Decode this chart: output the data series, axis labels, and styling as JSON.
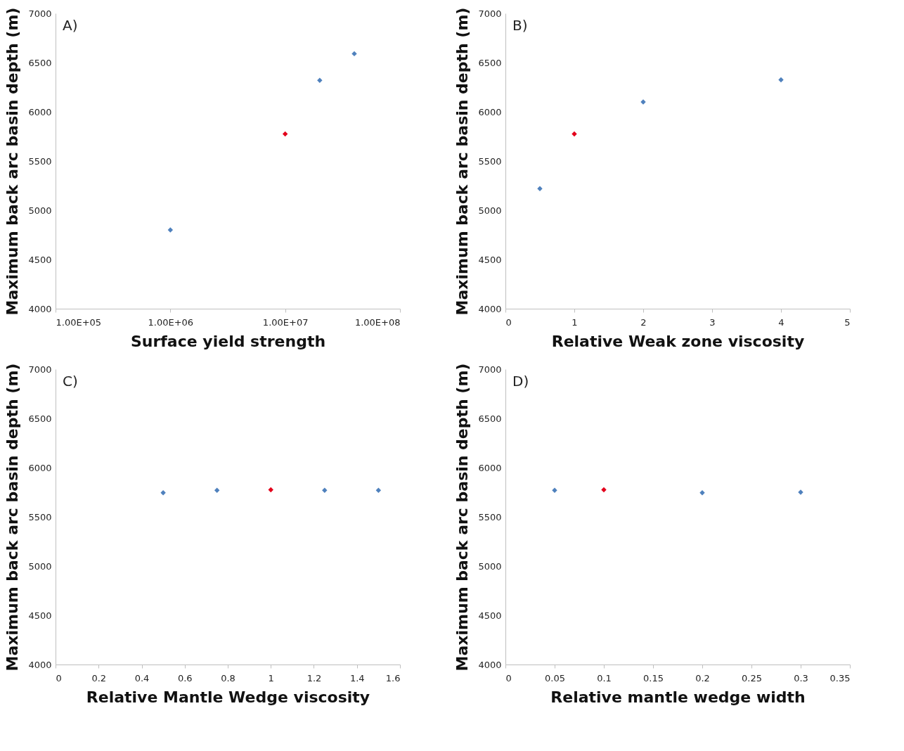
{
  "chart_data": [
    {
      "type": "scatter",
      "annotations": [
        "A)"
      ],
      "xlabel": "Surface yield strength",
      "ylabel": "Maximum back arc basin depth (m)",
      "log": "x",
      "xlim": [
        100000,
        100000000
      ],
      "xticks": [
        {
          "value": 100000,
          "label": "1.00E+05"
        },
        {
          "value": 1000000,
          "label": "1.00E+06"
        },
        {
          "value": 10000000,
          "label": "1.00E+07"
        },
        {
          "value": 100000000,
          "label": "1.00E+08"
        }
      ],
      "ylim": [
        4000,
        7000
      ],
      "yticks": [
        4000,
        4500,
        5000,
        5500,
        6000,
        6500,
        7000
      ],
      "grid": false,
      "legend": false,
      "marker": "diamond",
      "series": [
        {
          "color": "#4f81bd",
          "x": [
            1000000,
            20000000,
            40000000
          ],
          "values": [
            4800,
            6320,
            6590
          ]
        },
        {
          "color": "#e3001b",
          "x": [
            10000000
          ],
          "values": [
            5775
          ]
        }
      ]
    },
    {
      "type": "scatter",
      "annotations": [
        "B)"
      ],
      "xlabel": "Relative Weak zone viscosity",
      "ylabel": "Maximum back arc basin depth (m)",
      "xlim": [
        0,
        5
      ],
      "xticks": [
        0,
        1,
        2,
        3,
        4,
        5
      ],
      "ylim": [
        4000,
        7000
      ],
      "yticks": [
        4000,
        4500,
        5000,
        5500,
        6000,
        6500,
        7000
      ],
      "grid": false,
      "legend": false,
      "marker": "diamond",
      "series": [
        {
          "color": "#4f81bd",
          "x": [
            0.5,
            2,
            4
          ],
          "values": [
            5220,
            6100,
            6325
          ]
        },
        {
          "color": "#e3001b",
          "x": [
            1
          ],
          "values": [
            5775
          ]
        }
      ]
    },
    {
      "type": "scatter",
      "annotations": [
        "C)"
      ],
      "xlabel": "Relative Mantle Wedge viscosity",
      "ylabel": "Maximum back arc basin depth (m)",
      "xlim": [
        0,
        1.6
      ],
      "xticks": [
        0,
        0.2,
        0.4,
        0.6,
        0.8,
        1,
        1.2,
        1.4,
        1.6
      ],
      "ylim": [
        4000,
        7000
      ],
      "yticks": [
        4000,
        4500,
        5000,
        5500,
        6000,
        6500,
        7000
      ],
      "grid": false,
      "legend": false,
      "marker": "diamond",
      "series": [
        {
          "color": "#4f81bd",
          "x": [
            0.5,
            0.75,
            1.25,
            1.5
          ],
          "values": [
            5745,
            5770,
            5770,
            5770
          ]
        },
        {
          "color": "#e3001b",
          "x": [
            1
          ],
          "values": [
            5775
          ]
        }
      ]
    },
    {
      "type": "scatter",
      "annotations": [
        "D)"
      ],
      "xlabel": "Relative mantle wedge width",
      "ylabel": "Maximum back arc basin depth (m)",
      "xlim": [
        0,
        0.35
      ],
      "xticks": [
        0,
        0.05,
        0.1,
        0.15,
        0.2,
        0.25,
        0.3,
        0.35
      ],
      "ylim": [
        4000,
        7000
      ],
      "yticks": [
        4000,
        4500,
        5000,
        5500,
        6000,
        6500,
        7000
      ],
      "grid": false,
      "legend": false,
      "marker": "diamond",
      "series": [
        {
          "color": "#4f81bd",
          "x": [
            0.05,
            0.2,
            0.3
          ],
          "values": [
            5770,
            5745,
            5750
          ]
        },
        {
          "color": "#e3001b",
          "x": [
            0.1
          ],
          "values": [
            5775
          ]
        }
      ]
    }
  ]
}
